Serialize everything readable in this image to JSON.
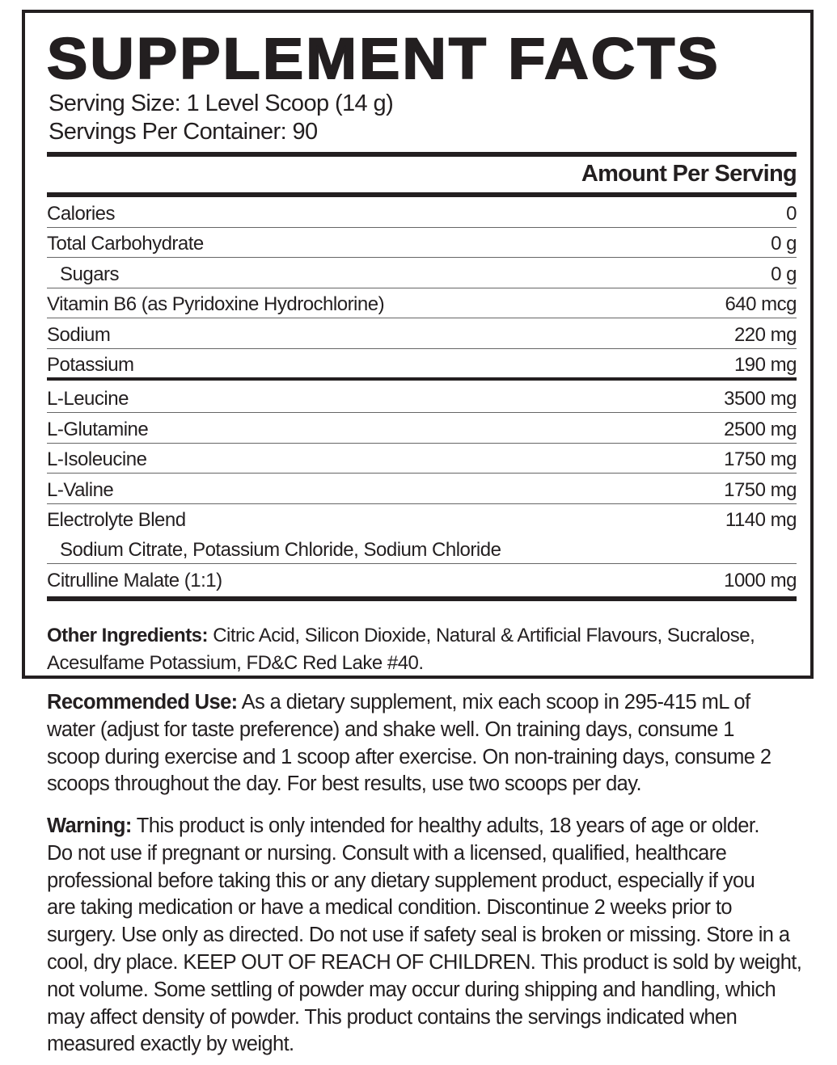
{
  "title": "SUPPLEMENT FACTS",
  "serving_size": "Serving Size: 1 Level Scoop (14 g)",
  "servings_per_container": "Servings Per Container: 90",
  "amount_header": "Amount Per Serving",
  "rows": [
    {
      "name": "Calories",
      "value": "0"
    },
    {
      "name": "Total Carbohydrate",
      "value": "0 g"
    },
    {
      "name": "Sugars",
      "value": "0 g"
    },
    {
      "name": "Vitamin B6 (as Pyridoxine Hydrochlorine)",
      "value": "640 mcg"
    },
    {
      "name": "Sodium",
      "value": "220 mg"
    },
    {
      "name": "Potassium",
      "value": "190 mg"
    },
    {
      "name": "L-Leucine",
      "value": "3500 mg"
    },
    {
      "name": "L-Glutamine",
      "value": "2500 mg"
    },
    {
      "name": "L-Isoleucine",
      "value": "1750 mg"
    },
    {
      "name": "L-Valine",
      "value": "1750 mg"
    },
    {
      "name": "Electrolyte Blend",
      "value": "1140 mg"
    },
    {
      "name": "Sodium Citrate, Potassium Chloride, Sodium Chloride",
      "value": ""
    },
    {
      "name": "Citrulline Malate (1:1)",
      "value": "1000 mg"
    }
  ],
  "other_ingredients": {
    "label": "Other Ingredients:",
    "lines": [
      " Citric Acid, Silicon Dioxide, Natural & Artificial Flavours, Sucralose,",
      "Acesulfame Potassium, FD&C Red Lake #40."
    ]
  },
  "recommended_use": {
    "label": "Recommended Use:",
    "lines": [
      " As a dietary supplement, mix each scoop in 295-415 mL of",
      "water (adjust for taste preference) and shake well. On training days, consume 1",
      "scoop during exercise and 1 scoop after exercise. On non-training days, consume 2",
      "scoops throughout the day. For best results, use two scoops per day."
    ]
  },
  "warning": {
    "label": "Warning:",
    "lines": [
      " This product is only intended for healthy adults, 18 years of age or older.",
      "Do not use if pregnant or nursing. Consult with a licensed, qualified, healthcare",
      "professional before taking this or any dietary supplement product, especially if you",
      "are taking medication or have a medical condition. Discontinue 2 weeks prior to",
      "surgery. Use only as directed. Do not use if safety seal is broken or missing. Store in a",
      "cool, dry place. KEEP OUT OF REACH OF CHILDREN. This product is sold by weight,",
      "not volume. Some settling of powder may occur during shipping and handling, which",
      "may affect density of powder. This product contains the servings indicated when",
      "measured exactly by weight."
    ]
  }
}
